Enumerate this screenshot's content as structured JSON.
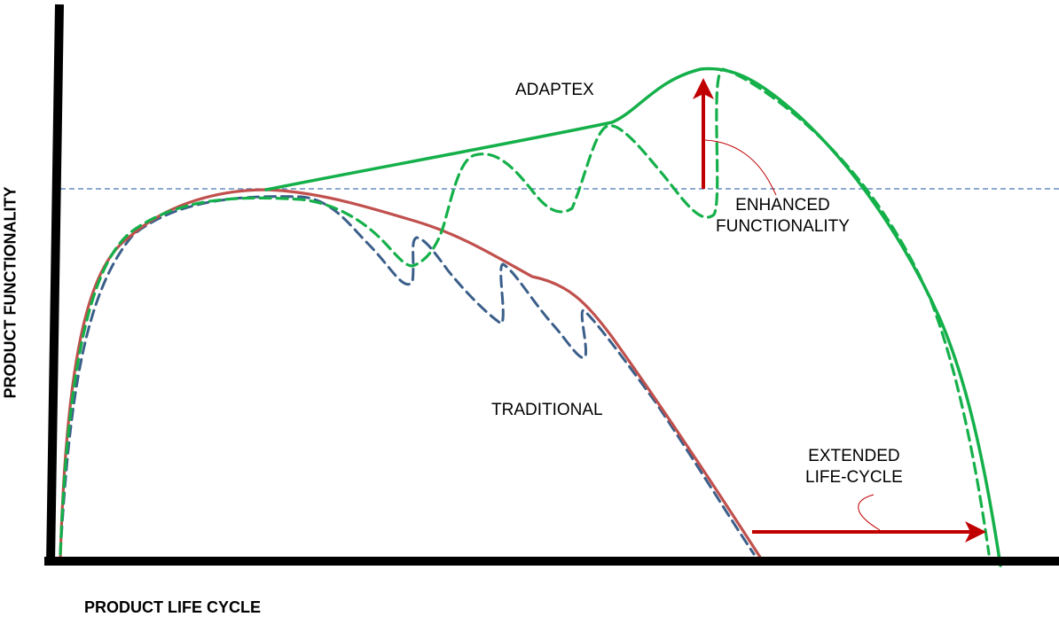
{
  "labels": {
    "adaptex": "ADAPTEX",
    "traditional": "TRADITIONAL",
    "enhanced_line1": "ENHANCED",
    "enhanced_line2": "FUNCTIONALITY",
    "extended_line1": "EXTENDED",
    "extended_line2": "LIFE-CYCLE",
    "x_axis": "PRODUCT LIFE CYCLE",
    "y_axis": "PRODUCT FUNCTIONALITY"
  },
  "colors": {
    "axis": "#000000",
    "adaptex": "#14b04a",
    "traditional": "#c0504d",
    "traditional_variant": "#3b5f8a",
    "threshold": "#4a76b8",
    "arrow": "#c00000",
    "leader": "#c00000"
  }
}
